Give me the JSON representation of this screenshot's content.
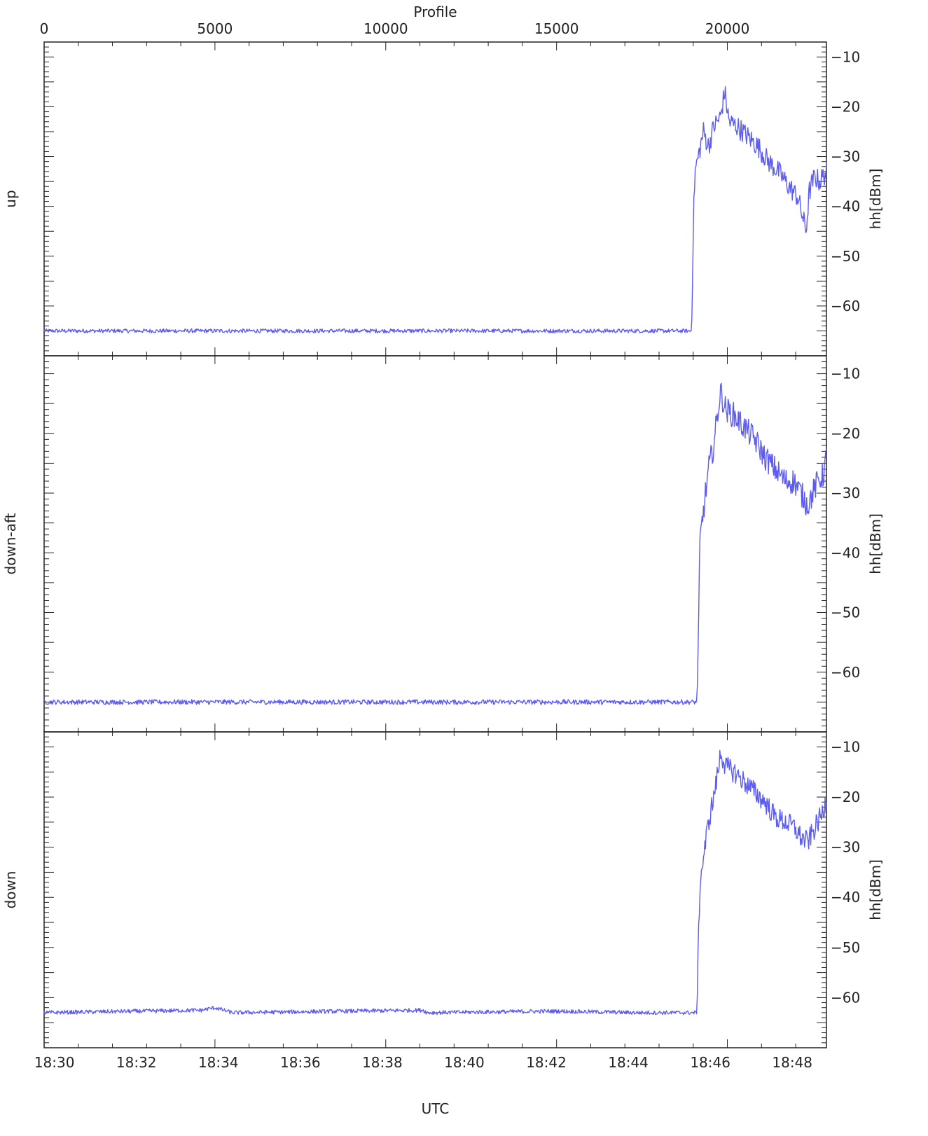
{
  "chart_data": {
    "type": "line",
    "top_axis": {
      "label": "Profile",
      "range": [
        0,
        22900
      ],
      "ticks": [
        0,
        5000,
        10000,
        15000,
        20000
      ]
    },
    "bottom_axis": {
      "label": "UTC",
      "range": [
        "18:29:45",
        "18:48:50"
      ],
      "ticks": [
        "18:30",
        "18:32",
        "18:34",
        "18:36",
        "18:38",
        "18:40",
        "18:42",
        "18:44",
        "18:46",
        "18:48"
      ]
    },
    "color": "#5c5cf5",
    "panels": [
      {
        "left_label": "up",
        "right_label": "hh[dBm]",
        "ylim": [
          -70,
          -7
        ],
        "yticks": [
          -60,
          -50,
          -40,
          -30,
          -20,
          -10
        ],
        "baseline": -65,
        "noise": 0.4,
        "points": [
          [
            0,
            -65
          ],
          [
            18950,
            -65
          ],
          [
            19000,
            -45
          ],
          [
            19050,
            -33
          ],
          [
            19150,
            -30
          ],
          [
            19300,
            -25
          ],
          [
            19450,
            -28
          ],
          [
            19600,
            -24
          ],
          [
            19800,
            -22
          ],
          [
            19920,
            -17
          ],
          [
            20050,
            -23
          ],
          [
            20300,
            -24
          ],
          [
            20600,
            -26
          ],
          [
            20900,
            -28
          ],
          [
            21200,
            -31
          ],
          [
            21500,
            -33
          ],
          [
            21800,
            -36
          ],
          [
            22050,
            -38
          ],
          [
            22200,
            -42
          ],
          [
            22300,
            -45
          ],
          [
            22400,
            -37
          ],
          [
            22550,
            -34
          ],
          [
            22700,
            -35
          ],
          [
            22900,
            -33
          ]
        ]
      },
      {
        "left_label": "down-aft",
        "right_label": "hh[dBm]",
        "ylim": [
          -70,
          -7
        ],
        "yticks": [
          -60,
          -50,
          -40,
          -30,
          -20,
          -10
        ],
        "baseline": -65,
        "noise": 0.4,
        "points": [
          [
            0,
            -65
          ],
          [
            19100,
            -65
          ],
          [
            19150,
            -55
          ],
          [
            19200,
            -38
          ],
          [
            19300,
            -33
          ],
          [
            19450,
            -26
          ],
          [
            19600,
            -22
          ],
          [
            19750,
            -15
          ],
          [
            19800,
            -13
          ],
          [
            19950,
            -16
          ],
          [
            20200,
            -17
          ],
          [
            20500,
            -19
          ],
          [
            20800,
            -21
          ],
          [
            21100,
            -24
          ],
          [
            21400,
            -26
          ],
          [
            21700,
            -28
          ],
          [
            21950,
            -28
          ],
          [
            22150,
            -30
          ],
          [
            22350,
            -32
          ],
          [
            22500,
            -30
          ],
          [
            22650,
            -28
          ],
          [
            22800,
            -27
          ],
          [
            22900,
            -24
          ]
        ]
      },
      {
        "left_label": "down",
        "right_label": "hh[dBm]",
        "ylim": [
          -70,
          -7
        ],
        "yticks": [
          -60,
          -50,
          -40,
          -30,
          -20,
          -10
        ],
        "baseline": -63,
        "noise": 0.4,
        "points": [
          [
            0,
            -63
          ],
          [
            4600,
            -62.5
          ],
          [
            5000,
            -62
          ],
          [
            5500,
            -63
          ],
          [
            11100,
            -62.5
          ],
          [
            11200,
            -63
          ],
          [
            15000,
            -62.7
          ],
          [
            17300,
            -63
          ],
          [
            19100,
            -63
          ],
          [
            19150,
            -50
          ],
          [
            19200,
            -37
          ],
          [
            19300,
            -32
          ],
          [
            19450,
            -25
          ],
          [
            19600,
            -20
          ],
          [
            19750,
            -14
          ],
          [
            19800,
            -11
          ],
          [
            19950,
            -14
          ],
          [
            20200,
            -15
          ],
          [
            20500,
            -17
          ],
          [
            20800,
            -19
          ],
          [
            21100,
            -21
          ],
          [
            21400,
            -24
          ],
          [
            21700,
            -25
          ],
          [
            21950,
            -26
          ],
          [
            22150,
            -28
          ],
          [
            22350,
            -29
          ],
          [
            22500,
            -27
          ],
          [
            22650,
            -25
          ],
          [
            22800,
            -23
          ],
          [
            22900,
            -20
          ]
        ]
      }
    ]
  }
}
